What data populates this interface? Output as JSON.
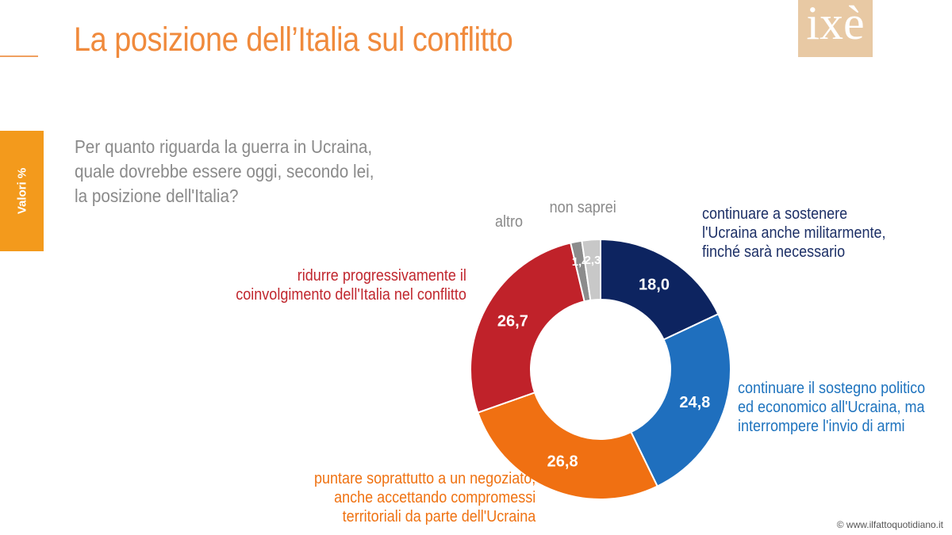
{
  "header": {
    "title": "La posizione dell’Italia sul conflitto",
    "logo_text": "ixè"
  },
  "side_tab": {
    "label": "Valori %"
  },
  "question": "Per quanto riguarda la guerra in Ucraina, quale dovrebbe essere oggi, secondo lei, la posizione dell'Italia?",
  "footer": {
    "credit": "© www.ilfattoquotidiano.it"
  },
  "colors": {
    "title": "#f08a3c",
    "side_tab": "#f39a1c",
    "logo": "#e8c9a4"
  },
  "chart_data": {
    "type": "pie",
    "donut": true,
    "title": "La posizione dell’Italia sul conflitto",
    "unit": "%",
    "slices": [
      {
        "label": "continuare a sostenere l'Ucraina anche militarmente, finché sarà necessario",
        "value": 18.0,
        "display": "18,0",
        "color": "#0d2460",
        "text_color": "#1c2f66"
      },
      {
        "label": "continuare il sostegno politico ed economico all'Ucraina, ma interrompere l'invio di armi",
        "value": 24.8,
        "display": "24,8",
        "color": "#1f6fbe",
        "text_color": "#1e73be"
      },
      {
        "label": "puntare soprattutto a un negoziato, anche accettando compromessi territoriali da parte dell'Ucraina",
        "value": 26.8,
        "display": "26,8",
        "color": "#f07012",
        "text_color": "#ef7212"
      },
      {
        "label": "ridurre progressivamente il coinvolgimento dell'Italia nel conflitto",
        "value": 26.7,
        "display": "26,7",
        "color": "#c0222a",
        "text_color": "#c0262d"
      },
      {
        "label": "altro",
        "value": 1.4,
        "display": "1,4",
        "color": "#8c8c8c",
        "text_color": "#8a8a8a"
      },
      {
        "label": "non saprei",
        "value": 2.3,
        "display": "2,3",
        "color": "#c8c8c8",
        "text_color": "#8a8a8a"
      }
    ],
    "outside_labels": {
      "s0": [
        "continuare a sostenere",
        "l'Ucraina anche militarmente,",
        "finché sarà necessario"
      ],
      "s1": [
        "continuare il sostegno politico",
        "ed economico all'Ucraina, ma",
        "interrompere l'invio di armi"
      ],
      "s2": [
        "puntare soprattutto a un negoziato,",
        "anche accettando compromessi",
        "territoriali da parte dell'Ucraina"
      ],
      "s3": [
        "ridurre progressivamente il",
        "coinvolgimento dell'Italia nel conflitto"
      ],
      "s4": [
        "altro"
      ],
      "s5": [
        "non saprei"
      ]
    }
  }
}
